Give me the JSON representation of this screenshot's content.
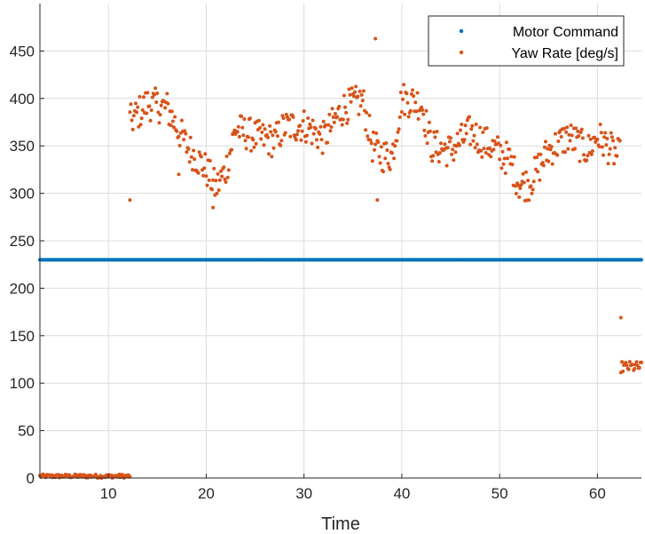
{
  "chart_data": {
    "type": "scatter",
    "title": "",
    "xlabel": "Time",
    "ylabel": "",
    "xlim": [
      3,
      64.5
    ],
    "ylim": [
      0,
      500
    ],
    "xticks": [
      10,
      20,
      30,
      40,
      50,
      60
    ],
    "yticks": [
      0,
      50,
      100,
      150,
      200,
      250,
      300,
      350,
      400,
      450
    ],
    "grid": true,
    "legend": {
      "position": "top-right"
    },
    "series": [
      {
        "name": "Motor Command",
        "color": "#0072BD",
        "marker": "dot",
        "x_start": 3,
        "x_end": 64.5,
        "x_step": 0.1,
        "y_constant": 230
      },
      {
        "name": "Yaw Rate [deg/s]",
        "color": "#D95319",
        "marker": "dot",
        "x_step": 0.1,
        "segments": [
          {
            "x_start": 3,
            "x_end": 12.2,
            "y_level": 2,
            "jitter": 2
          },
          {
            "x_start": 12.2,
            "x_end": 62.3,
            "curve": [
              [
                12.2,
                375
              ],
              [
                14,
                395
              ],
              [
                16,
                390
              ],
              [
                18,
                350
              ],
              [
                20,
                325
              ],
              [
                21,
                305
              ],
              [
                22,
                325
              ],
              [
                23,
                368
              ],
              [
                25,
                360
              ],
              [
                27,
                355
              ],
              [
                28,
                370
              ],
              [
                30,
                372
              ],
              [
                32,
                358
              ],
              [
                34,
                390
              ],
              [
                36,
                398
              ],
              [
                37,
                350
              ],
              [
                38,
                340
              ],
              [
                39,
                340
              ],
              [
                40,
                400
              ],
              [
                42,
                395
              ],
              [
                43,
                350
              ],
              [
                45,
                345
              ],
              [
                47,
                365
              ],
              [
                49,
                350
              ],
              [
                51,
                335
              ],
              [
                52,
                310
              ],
              [
                53,
                310
              ],
              [
                55,
                345
              ],
              [
                57,
                360
              ],
              [
                59,
                345
              ],
              [
                60,
                360
              ],
              [
                62,
                340
              ]
            ],
            "jitter": 18
          },
          {
            "x_start": 62.4,
            "x_end": 64.5,
            "y_level": 117,
            "jitter": 6
          }
        ],
        "outliers": [
          [
            12.2,
            293
          ],
          [
            37.3,
            463
          ],
          [
            37.5,
            293
          ],
          [
            62.4,
            169
          ],
          [
            20.7,
            285
          ],
          [
            17.2,
            320
          ]
        ]
      }
    ]
  }
}
